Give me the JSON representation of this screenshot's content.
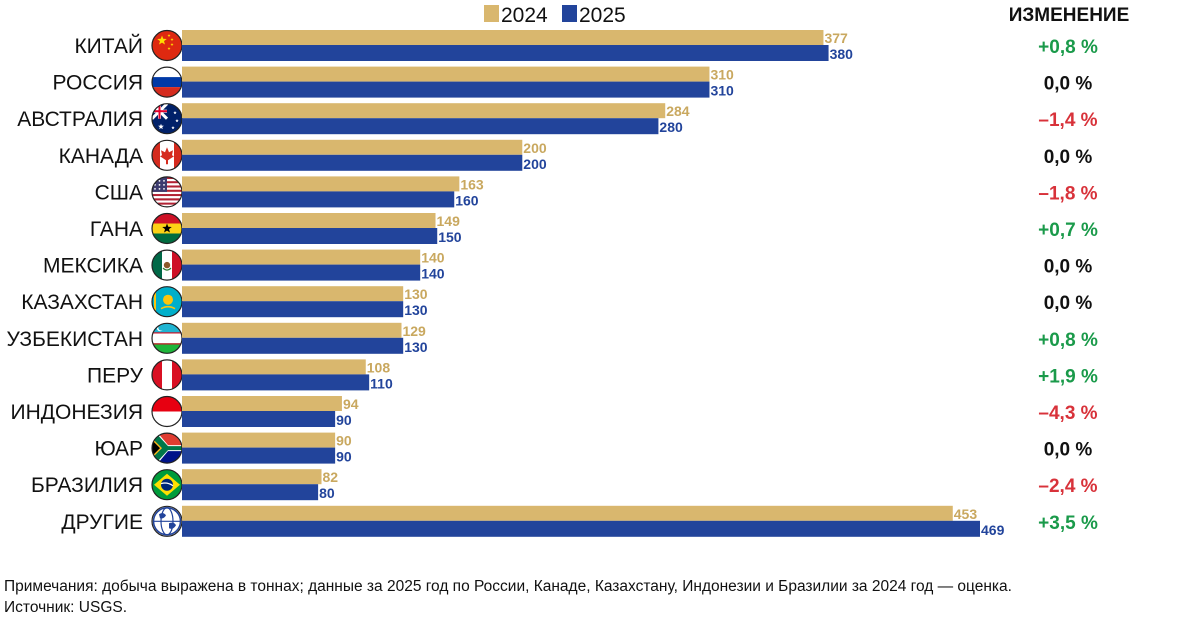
{
  "chart_data": {
    "type": "bar",
    "orientation": "horizontal",
    "categories": [
      "КИТАЙ",
      "РОССИЯ",
      "АВСТРАЛИЯ",
      "КАНАДА",
      "США",
      "ГАНА",
      "МЕКСИКА",
      "КАЗАХСТАН",
      "УЗБЕКИСТАН",
      "ПЕРУ",
      "ИНДОНЕЗИЯ",
      "ЮАР",
      "БРАЗИЛИЯ",
      "ДРУГИЕ"
    ],
    "flags": [
      "china-flag-icon",
      "russia-flag-icon",
      "australia-flag-icon",
      "canada-flag-icon",
      "usa-flag-icon",
      "ghana-flag-icon",
      "mexico-flag-icon",
      "kazakhstan-flag-icon",
      "uzbekistan-flag-icon",
      "peru-flag-icon",
      "indonesia-flag-icon",
      "south-africa-flag-icon",
      "brazil-flag-icon",
      "globe-icon"
    ],
    "series": [
      {
        "name": "2024",
        "color": "#d9b76e",
        "label_color": "#c9a85f",
        "values": [
          377,
          310,
          284,
          200,
          163,
          149,
          140,
          130,
          129,
          108,
          94,
          90,
          82,
          453
        ]
      },
      {
        "name": "2025",
        "color": "#22449b",
        "label_color": "#22449b",
        "values": [
          380,
          310,
          280,
          200,
          160,
          150,
          140,
          130,
          130,
          110,
          90,
          90,
          80,
          469
        ]
      }
    ],
    "change_header": "ИЗМЕНЕНИЕ",
    "changes": [
      "+0,8 %",
      "0,0 %",
      "–1,4 %",
      "0,0 %",
      "–1,8 %",
      "+0,7 %",
      "0,0 %",
      "0,0 %",
      "+0,8 %",
      "+1,9 %",
      "–4,3 %",
      "0,0 %",
      "–2,4 %",
      "+3,5 %"
    ],
    "change_colors": {
      "positive": "#1a9a4a",
      "zero": "#111111",
      "negative": "#d8323a"
    },
    "xlim": [
      0,
      469
    ],
    "legend_position": "top",
    "grid": false
  },
  "notes": {
    "line1": "Примечания: добыча выражена в тоннах; данные за 2025 год по России, Канаде, Казахстану, Индонезии и Бразилии за 2024 год — оценка.",
    "line2": "Источник: USGS."
  }
}
